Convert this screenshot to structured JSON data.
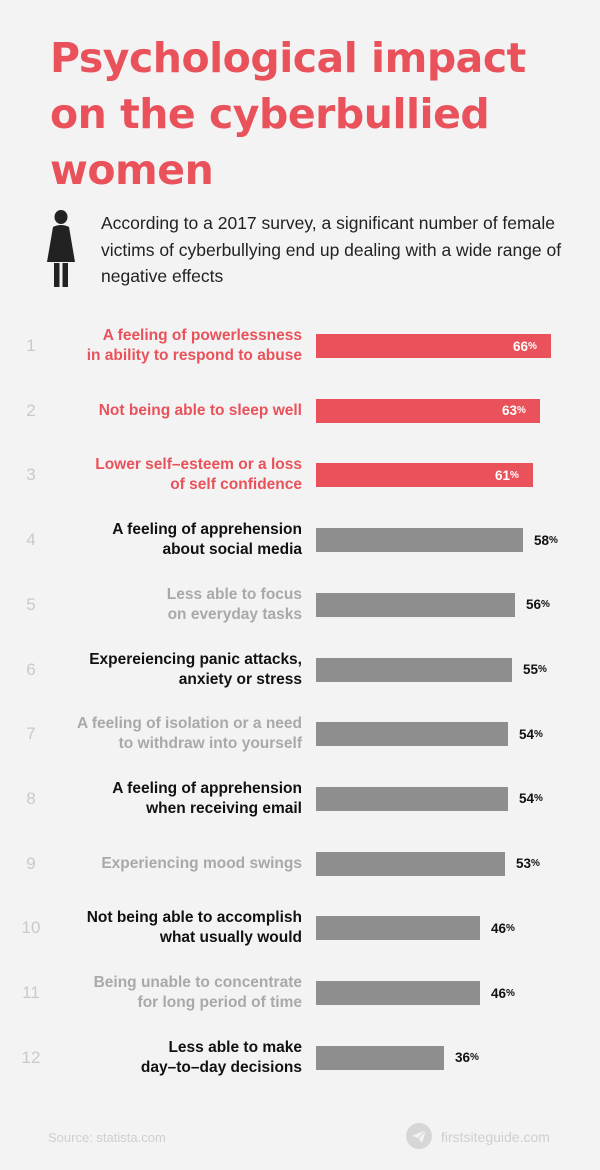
{
  "title": "Psychological impact on the cyberbullied women",
  "intro": "According to a 2017 survey, a significant number of female victims of cyberbullying end up dealing with a wide range of negative effects",
  "colors": {
    "accent": "#e9525a",
    "bar_gray": "#8e8e8e",
    "label_dark": "#111111",
    "label_light": "#a9a9a9"
  },
  "chart_data": {
    "type": "bar",
    "orientation": "horizontal",
    "unit": "%",
    "xlim": [
      0,
      66
    ],
    "grid": false,
    "items": [
      {
        "rank": "1",
        "label": "A feeling of powerlessness\nin ability to respond to abuse",
        "value": 66,
        "style": "accent"
      },
      {
        "rank": "2",
        "label": "Not being able to sleep well",
        "value": 63,
        "style": "accent"
      },
      {
        "rank": "3",
        "label": "Lower self–esteem or a loss\nof self confidence",
        "value": 61,
        "style": "accent"
      },
      {
        "rank": "4",
        "label": "A feeling of apprehension\nabout social media",
        "value": 58,
        "style": "dark"
      },
      {
        "rank": "5",
        "label": "Less able to focus\non everyday tasks",
        "value": 56,
        "style": "light"
      },
      {
        "rank": "6",
        "label": "Expereiencing panic attacks,\nanxiety or stress",
        "value": 55,
        "style": "dark"
      },
      {
        "rank": "7",
        "label": "A feeling of isolation or a need\nto withdraw into yourself",
        "value": 54,
        "style": "light"
      },
      {
        "rank": "8",
        "label": "A feeling of apprehension\nwhen receiving email",
        "value": 54,
        "style": "dark"
      },
      {
        "rank": "9",
        "label": "Experiencing mood swings",
        "value": 53,
        "style": "light"
      },
      {
        "rank": "10",
        "label": "Not being able to accomplish\nwhat usually would",
        "value": 46,
        "style": "dark"
      },
      {
        "rank": "11",
        "label": "Being unable to concentrate\nfor long period of time",
        "value": 46,
        "style": "light"
      },
      {
        "rank": "12",
        "label": "Less able to make\nday–to–day decisions",
        "value": 36,
        "style": "dark"
      }
    ]
  },
  "footer": {
    "source": "Source: statista.com",
    "brand": "firstsiteguide.com",
    "brand_icon": "paper-plane-icon"
  },
  "icons": {
    "intro": "woman-figure-icon"
  }
}
